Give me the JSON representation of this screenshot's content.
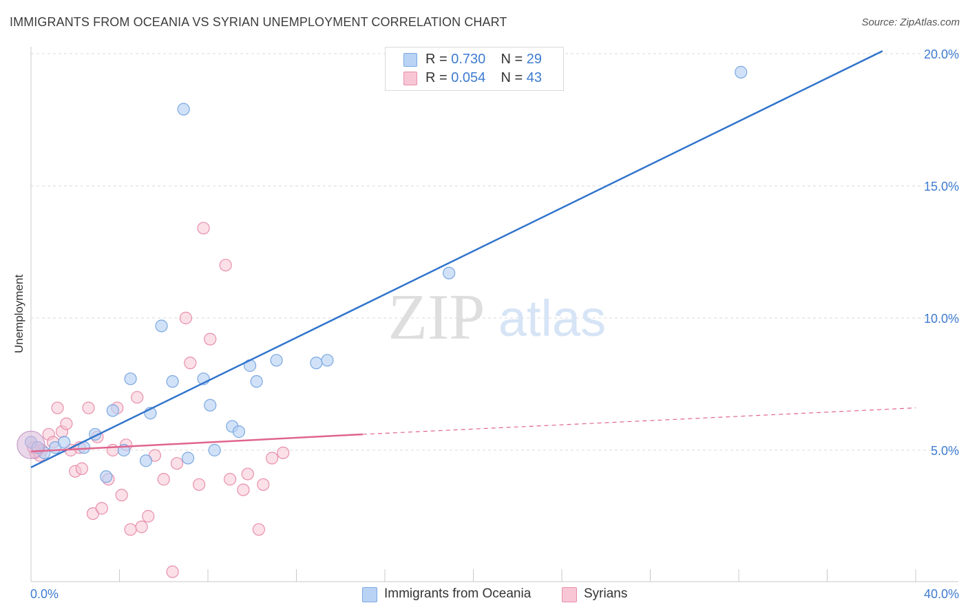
{
  "header": {
    "title": "IMMIGRANTS FROM OCEANIA VS SYRIAN UNEMPLOYMENT CORRELATION CHART",
    "source": "Source: ZipAtlas.com"
  },
  "watermark": {
    "zip": "ZIP",
    "atlas": "atlas"
  },
  "legend_top": {
    "rows": [
      {
        "r_label": "R =",
        "r_value": "0.730",
        "n_label": "N =",
        "n_value": "29"
      },
      {
        "r_label": "R =",
        "r_value": "0.054",
        "n_label": "N =",
        "n_value": "43"
      }
    ]
  },
  "legend_bottom": {
    "items": [
      {
        "label": "Immigrants from Oceania"
      },
      {
        "label": "Syrians"
      }
    ]
  },
  "colors": {
    "blue_fill": "#b9d3f5",
    "blue_stroke": "#7aa7e0",
    "blue_line": "#3074cc",
    "pink_fill": "#f8c6d5",
    "pink_stroke": "#e88eab",
    "pink_line": "#e0648d",
    "tick_label": "#3d7bd0",
    "grid": "#d8d8d8"
  },
  "chart_data": {
    "type": "scatter",
    "title": "IMMIGRANTS FROM OCEANIA VS SYRIAN UNEMPLOYMENT CORRELATION CHART",
    "xlabel": "",
    "ylabel": "Unemployment",
    "xlim": [
      0,
      40
    ],
    "ylim": [
      0,
      20.5
    ],
    "x_tick_labels": [
      {
        "value": 0,
        "label": "0.0%"
      },
      {
        "value": 40,
        "label": "40.0%"
      }
    ],
    "y_tick_labels": [
      {
        "value": 5,
        "label": "5.0%"
      },
      {
        "value": 10,
        "label": "10.0%"
      },
      {
        "value": 15,
        "label": "15.0%"
      },
      {
        "value": 20,
        "label": "20.0%"
      }
    ],
    "series": [
      {
        "name": "Immigrants from Oceania",
        "color": "blue",
        "points": [
          [
            0.0,
            5.3
          ],
          [
            0.6,
            4.9
          ],
          [
            1.1,
            5.1
          ],
          [
            1.5,
            5.3
          ],
          [
            2.4,
            5.1
          ],
          [
            2.9,
            5.6
          ],
          [
            3.4,
            4.0
          ],
          [
            3.7,
            6.5
          ],
          [
            4.2,
            5.0
          ],
          [
            4.5,
            7.7
          ],
          [
            5.2,
            4.6
          ],
          [
            5.4,
            6.4
          ],
          [
            5.9,
            9.7
          ],
          [
            6.4,
            7.6
          ],
          [
            6.9,
            17.9
          ],
          [
            7.1,
            4.7
          ],
          [
            7.8,
            7.7
          ],
          [
            8.1,
            6.7
          ],
          [
            8.3,
            5.0
          ],
          [
            9.1,
            5.9
          ],
          [
            9.4,
            5.7
          ],
          [
            9.9,
            8.2
          ],
          [
            10.2,
            7.6
          ],
          [
            11.1,
            8.4
          ],
          [
            12.9,
            8.3
          ],
          [
            13.4,
            8.4
          ],
          [
            18.9,
            11.7
          ],
          [
            32.1,
            19.3
          ],
          [
            0.3,
            5.1
          ]
        ],
        "trend": {
          "x": [
            0,
            38.5
          ],
          "y": [
            4.35,
            20.1
          ],
          "style": "solid"
        }
      },
      {
        "name": "Syrians",
        "color": "pink",
        "points": [
          [
            0.2,
            4.9
          ],
          [
            0.5,
            5.0
          ],
          [
            0.8,
            5.6
          ],
          [
            1.0,
            5.3
          ],
          [
            1.2,
            6.6
          ],
          [
            1.4,
            5.7
          ],
          [
            1.6,
            6.0
          ],
          [
            1.8,
            5.0
          ],
          [
            2.0,
            4.2
          ],
          [
            2.3,
            4.3
          ],
          [
            2.6,
            6.6
          ],
          [
            2.8,
            2.6
          ],
          [
            3.0,
            5.5
          ],
          [
            3.2,
            2.8
          ],
          [
            3.5,
            3.9
          ],
          [
            3.7,
            5.0
          ],
          [
            3.9,
            6.6
          ],
          [
            4.1,
            3.3
          ],
          [
            4.3,
            5.2
          ],
          [
            4.5,
            2.0
          ],
          [
            4.8,
            7.0
          ],
          [
            5.0,
            2.1
          ],
          [
            5.3,
            2.5
          ],
          [
            5.6,
            4.8
          ],
          [
            6.0,
            3.9
          ],
          [
            6.4,
            0.4
          ],
          [
            6.6,
            4.5
          ],
          [
            7.0,
            10.0
          ],
          [
            7.2,
            8.3
          ],
          [
            7.6,
            3.7
          ],
          [
            7.8,
            13.4
          ],
          [
            8.1,
            9.2
          ],
          [
            8.8,
            12.0
          ],
          [
            9.0,
            3.9
          ],
          [
            9.6,
            3.5
          ],
          [
            9.8,
            4.1
          ],
          [
            10.3,
            2.0
          ],
          [
            10.5,
            3.7
          ],
          [
            10.9,
            4.7
          ],
          [
            11.4,
            4.9
          ],
          [
            0.1,
            5.1
          ],
          [
            0.4,
            4.8
          ],
          [
            2.2,
            5.1
          ]
        ],
        "trend": {
          "x": [
            0,
            15
          ],
          "y": [
            4.95,
            5.6
          ],
          "style": "solid"
        },
        "trend_extension": {
          "x": [
            15,
            40
          ],
          "y": [
            5.6,
            6.6
          ],
          "style": "dashed"
        }
      }
    ]
  }
}
